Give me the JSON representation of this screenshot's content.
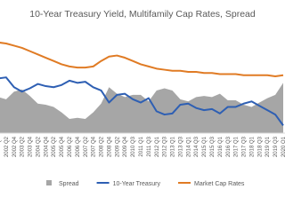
{
  "chart_data": {
    "type": "line",
    "title": "10-Year Treasury Yield, Multifamily Cap Rates, Spread",
    "categories": [
      "2001 Q4",
      "2002 Q2",
      "2002 Q4",
      "2003 Q2",
      "2003 Q4",
      "2004 Q2",
      "2004 Q4",
      "2005 Q2",
      "2005 Q4",
      "2006 Q2",
      "2006 Q4",
      "2007 Q2",
      "2007 Q4",
      "2008 Q2",
      "2008 Q4",
      "2009 Q2",
      "2009 Q4",
      "2010 Q3",
      "2011 Q1",
      "2011 Q3",
      "2012 Q1",
      "2012 Q3",
      "2013 Q1",
      "2013 Q3",
      "2014 Q1",
      "2014 Q3",
      "2015 Q1",
      "2015 Q3",
      "2016 Q1",
      "2016 Q3",
      "2017 Q1",
      "2017 Q3",
      "2018 Q1",
      "2018 Q3",
      "2019 Q1",
      "2019 Q3",
      "2020 Q1"
    ],
    "series": [
      {
        "name": "Spread",
        "kind": "area",
        "color": "#a6a6a6",
        "values": [
          3.3,
          3.1,
          3.8,
          4.0,
          3.4,
          2.7,
          2.6,
          2.4,
          1.9,
          1.3,
          1.4,
          1.3,
          1.9,
          2.7,
          4.2,
          3.6,
          3.3,
          3.5,
          3.5,
          2.9,
          3.9,
          4.1,
          3.9,
          3.1,
          2.9,
          3.3,
          3.4,
          3.3,
          3.6,
          3.0,
          3.0,
          2.6,
          2.4,
          2.8,
          3.2,
          3.5,
          4.6
        ]
      },
      {
        "name": "10-Year Treasury",
        "kind": "line",
        "color": "#2e5fb3",
        "values": [
          5.0,
          5.1,
          4.2,
          3.8,
          4.1,
          4.5,
          4.3,
          4.2,
          4.4,
          4.8,
          4.6,
          4.7,
          4.2,
          3.9,
          2.8,
          3.5,
          3.6,
          3.1,
          2.8,
          3.2,
          2.0,
          1.7,
          1.8,
          2.6,
          2.7,
          2.3,
          2.1,
          2.2,
          1.8,
          2.4,
          2.4,
          2.7,
          2.9,
          2.5,
          2.1,
          1.7,
          0.7
        ]
      },
      {
        "name": "Market Cap Rates",
        "kind": "line",
        "color": "#e07b24",
        "values": [
          8.3,
          8.2,
          8.0,
          7.8,
          7.5,
          7.2,
          6.9,
          6.6,
          6.3,
          6.1,
          6.0,
          6.0,
          6.1,
          6.6,
          7.0,
          7.1,
          6.9,
          6.6,
          6.3,
          6.1,
          5.9,
          5.8,
          5.7,
          5.7,
          5.6,
          5.6,
          5.5,
          5.5,
          5.4,
          5.4,
          5.4,
          5.3,
          5.3,
          5.3,
          5.3,
          5.2,
          5.3
        ]
      }
    ],
    "ylim": [
      0,
      9.5
    ],
    "grid": false
  }
}
